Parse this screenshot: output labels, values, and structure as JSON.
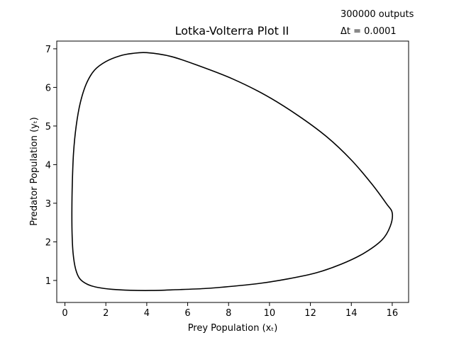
{
  "chart_data": {
    "type": "line",
    "title": "Lotka-Volterra Plot II",
    "xlabel": "Prey Population (xₜ)",
    "ylabel": "Predator Population (yₜ)",
    "xlim": [
      -0.4,
      16.8
    ],
    "ylim": [
      0.43,
      7.2
    ],
    "xticks": [
      0,
      2,
      4,
      6,
      8,
      10,
      12,
      14,
      16
    ],
    "yticks": [
      1,
      2,
      3,
      4,
      5,
      6,
      7
    ],
    "grid": false,
    "annotations": [
      "300000 outputs",
      "Δt = 0.0001"
    ],
    "series": [
      {
        "color": "#000000",
        "points": [
          [
            4.0,
            6.9
          ],
          [
            5.2,
            6.8
          ],
          [
            6.6,
            6.55
          ],
          [
            8.2,
            6.22
          ],
          [
            9.8,
            5.8
          ],
          [
            11.4,
            5.27
          ],
          [
            12.8,
            4.72
          ],
          [
            14.0,
            4.12
          ],
          [
            15.0,
            3.5
          ],
          [
            15.7,
            3.0
          ],
          [
            16.0,
            2.75
          ],
          [
            15.9,
            2.4
          ],
          [
            15.5,
            2.05
          ],
          [
            14.6,
            1.7
          ],
          [
            13.5,
            1.42
          ],
          [
            12.3,
            1.2
          ],
          [
            11.0,
            1.05
          ],
          [
            9.6,
            0.93
          ],
          [
            8.2,
            0.85
          ],
          [
            6.8,
            0.79
          ],
          [
            5.4,
            0.76
          ],
          [
            4.2,
            0.74
          ],
          [
            3.2,
            0.745
          ],
          [
            2.3,
            0.77
          ],
          [
            1.6,
            0.82
          ],
          [
            1.1,
            0.9
          ],
          [
            0.72,
            1.05
          ],
          [
            0.52,
            1.3
          ],
          [
            0.4,
            1.7
          ],
          [
            0.35,
            2.2
          ],
          [
            0.34,
            2.8
          ],
          [
            0.36,
            3.5
          ],
          [
            0.42,
            4.3
          ],
          [
            0.55,
            5.0
          ],
          [
            0.75,
            5.6
          ],
          [
            1.05,
            6.1
          ],
          [
            1.45,
            6.45
          ],
          [
            2.0,
            6.67
          ],
          [
            2.7,
            6.82
          ],
          [
            3.3,
            6.88
          ],
          [
            4.0,
            6.9
          ]
        ]
      }
    ]
  }
}
